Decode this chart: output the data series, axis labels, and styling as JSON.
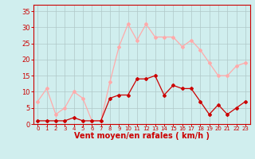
{
  "hours": [
    0,
    1,
    2,
    3,
    4,
    5,
    6,
    7,
    8,
    9,
    10,
    11,
    12,
    13,
    14,
    15,
    16,
    17,
    18,
    19,
    20,
    21,
    22,
    23
  ],
  "wind_avg": [
    1,
    1,
    1,
    1,
    2,
    1,
    1,
    1,
    8,
    9,
    9,
    14,
    14,
    15,
    9,
    12,
    11,
    11,
    7,
    3,
    6,
    3,
    5,
    7
  ],
  "wind_gust": [
    7,
    11,
    3,
    5,
    10,
    8,
    1,
    1,
    13,
    24,
    31,
    26,
    31,
    27,
    27,
    27,
    24,
    26,
    23,
    19,
    15,
    15,
    18,
    19
  ],
  "avg_color": "#cc0000",
  "gust_color": "#ffaaaa",
  "bg_color": "#d0eeee",
  "grid_color": "#b0c8c8",
  "xlabel": "Vent moyen/en rafales ( km/h )",
  "ylabel_ticks": [
    0,
    5,
    10,
    15,
    20,
    25,
    30,
    35
  ],
  "ylim": [
    0,
    37
  ],
  "xlim": [
    -0.5,
    23.5
  ],
  "marker": "D",
  "markersize": 2,
  "linewidth": 0.9,
  "xlabel_color": "#cc0000",
  "tick_color": "#cc0000",
  "spine_color": "#cc0000",
  "xlabel_fontsize": 7,
  "tick_fontsize_x": 5,
  "tick_fontsize_y": 6
}
